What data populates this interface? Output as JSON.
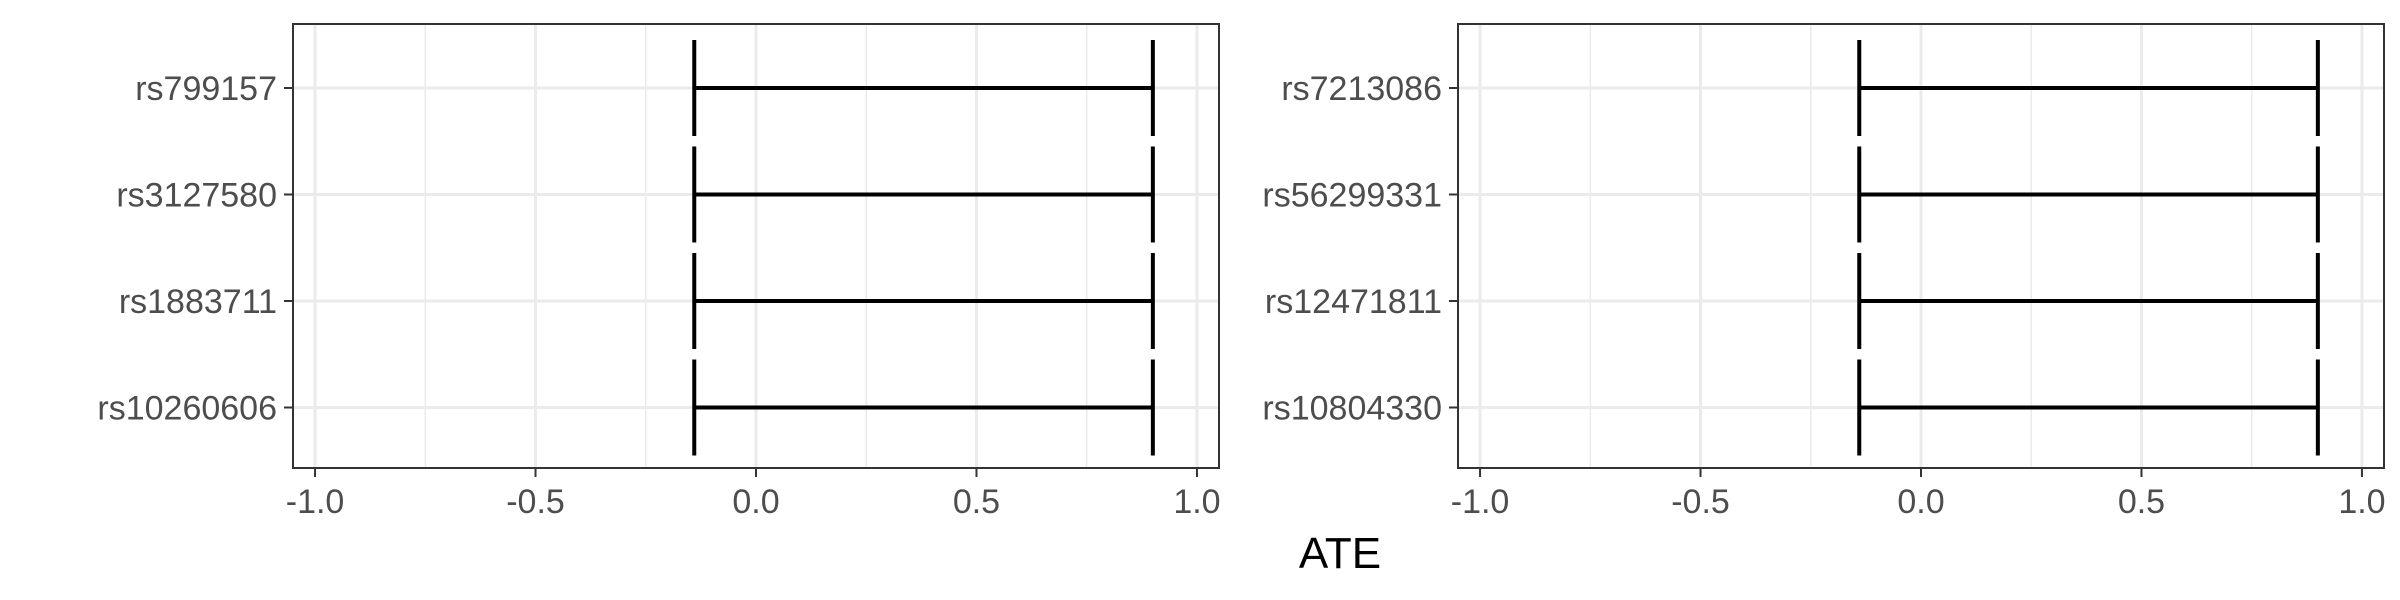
{
  "chart_data": {
    "type": "errorbar",
    "xlabel": "ATE",
    "xlim": [
      -1.05,
      1.05
    ],
    "xticks": [
      -1.0,
      -0.5,
      0.0,
      0.5,
      1.0
    ],
    "xtick_labels": [
      "-1.0",
      "-0.5",
      "0.0",
      "0.5",
      "1.0"
    ],
    "grid": true,
    "panels": [
      {
        "categories": [
          "rs799157",
          "rs3127580",
          "rs1883711",
          "rs10260606"
        ],
        "intervals": [
          {
            "label": "rs799157",
            "low": -0.14,
            "high": 0.9
          },
          {
            "label": "rs3127580",
            "low": -0.14,
            "high": 0.9
          },
          {
            "label": "rs1883711",
            "low": -0.14,
            "high": 0.9
          },
          {
            "label": "rs10260606",
            "low": -0.14,
            "high": 0.9
          }
        ]
      },
      {
        "categories": [
          "rs7213086",
          "rs56299331",
          "rs12471811",
          "rs10804330"
        ],
        "intervals": [
          {
            "label": "rs7213086",
            "low": -0.14,
            "high": 0.9
          },
          {
            "label": "rs56299331",
            "low": -0.14,
            "high": 0.9
          },
          {
            "label": "rs12471811",
            "low": -0.14,
            "high": 0.9
          },
          {
            "label": "rs10804330",
            "low": -0.14,
            "high": 0.9
          }
        ]
      }
    ]
  }
}
